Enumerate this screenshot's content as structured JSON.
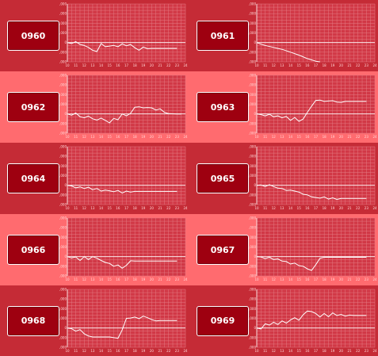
{
  "colors": {
    "row_dark": "#c52b36",
    "row_light": "#ff6b6f",
    "badge_fill": "#9e0010",
    "plot_bg": "#d13846",
    "grid": "#e47a82",
    "line": "#ffffff"
  },
  "y_ticks": [
    "12,000",
    "9,000",
    "6,000",
    "3,000",
    "0",
    "-3,000",
    "-6,000"
  ],
  "x_ticks": [
    "10",
    "11",
    "12",
    "13",
    "14",
    "15",
    "16",
    "17",
    "18",
    "19",
    "20",
    "21",
    "22",
    "23",
    "24"
  ],
  "chart_data": [
    {
      "id": "0960",
      "type": "line",
      "xlim": [
        10,
        24
      ],
      "ylim": [
        -6000,
        12000
      ],
      "x": [
        10,
        10.5,
        11,
        11.5,
        12,
        12.5,
        13,
        13.5,
        14,
        14.5,
        15,
        15.5,
        16,
        16.5,
        17,
        17.5,
        18,
        18.5,
        19,
        19.5,
        20,
        21,
        22,
        23
      ],
      "y": [
        0,
        -300,
        300,
        -600,
        -900,
        -1500,
        -2400,
        -2800,
        -300,
        -1300,
        -1100,
        -900,
        -1300,
        -400,
        -1000,
        -600,
        -1600,
        -2400,
        -1400,
        -1900,
        -1800,
        -1800,
        -1800,
        -1800
      ]
    },
    {
      "id": "0961",
      "type": "line",
      "xlim": [
        10,
        24
      ],
      "ylim": [
        -6000,
        12000
      ],
      "x": [
        10,
        10.5,
        11,
        12,
        13,
        14,
        15,
        16,
        17,
        17.5
      ],
      "y": [
        0,
        -500,
        -900,
        -1500,
        -2100,
        -3000,
        -3900,
        -5000,
        -5800,
        -6000
      ]
    },
    {
      "id": "0962",
      "type": "line",
      "xlim": [
        10,
        24
      ],
      "ylim": [
        -6000,
        12000
      ],
      "x": [
        10,
        10.5,
        11,
        11.5,
        12,
        12.5,
        13,
        13.5,
        14,
        14.5,
        15,
        15.5,
        16,
        16.5,
        17,
        17.5,
        18,
        18.5,
        19,
        19.5,
        20,
        20.5,
        21,
        21.5,
        22,
        23,
        23.5
      ],
      "y": [
        0,
        -400,
        300,
        -900,
        -1200,
        -700,
        -1500,
        -1900,
        -1300,
        -2000,
        -2800,
        -1400,
        -1800,
        0,
        -600,
        200,
        2100,
        2200,
        1900,
        2000,
        1900,
        1200,
        1600,
        500,
        100,
        0,
        0
      ]
    },
    {
      "id": "0963",
      "type": "line",
      "xlim": [
        10,
        24
      ],
      "ylim": [
        -6000,
        12000
      ],
      "x": [
        10,
        10.5,
        11,
        11.5,
        12,
        12.5,
        13,
        13.5,
        14,
        14.5,
        15,
        15.5,
        16,
        16.5,
        17,
        17.5,
        18,
        18.5,
        19,
        19.5,
        20,
        20.5,
        21,
        22,
        23
      ],
      "y": [
        0,
        -200,
        -600,
        -100,
        -900,
        -600,
        -1200,
        -800,
        -2000,
        -1100,
        -2300,
        -1600,
        500,
        2400,
        4200,
        4300,
        3900,
        4000,
        4100,
        3700,
        3600,
        3900,
        3900,
        3900,
        3900
      ]
    },
    {
      "id": "0964",
      "type": "line",
      "xlim": [
        10,
        24
      ],
      "ylim": [
        -6000,
        12000
      ],
      "x": [
        10,
        10.5,
        11,
        11.5,
        12,
        12.5,
        13,
        13.5,
        14,
        14.5,
        15,
        15.5,
        16,
        16.5,
        17,
        17.5,
        18,
        19,
        20,
        21,
        22,
        23
      ],
      "y": [
        0,
        -200,
        -800,
        -500,
        -1000,
        -600,
        -1400,
        -1000,
        -1800,
        -1500,
        -1700,
        -2000,
        -1600,
        -2400,
        -1800,
        -2100,
        -1900,
        -1900,
        -1900,
        -1900,
        -1900,
        -1900
      ]
    },
    {
      "id": "0965",
      "type": "line",
      "xlim": [
        10,
        24
      ],
      "ylim": [
        -6000,
        12000
      ],
      "x": [
        10,
        10.5,
        11,
        11.5,
        12,
        12.5,
        13,
        13.5,
        14,
        14.5,
        15,
        15.5,
        16,
        16.5,
        17,
        17.5,
        18,
        18.5,
        19,
        19.5,
        20,
        21,
        22,
        23
      ],
      "y": [
        0,
        100,
        -400,
        200,
        -400,
        -900,
        -1000,
        -1600,
        -1500,
        -1800,
        -2100,
        -2800,
        -3000,
        -3600,
        -3800,
        -4000,
        -3600,
        -4300,
        -3900,
        -4400,
        -4100,
        -4100,
        -4100,
        -4100
      ]
    },
    {
      "id": "0966",
      "type": "line",
      "xlim": [
        10,
        24
      ],
      "ylim": [
        -6000,
        12000
      ],
      "x": [
        10,
        10.5,
        11,
        11.5,
        12,
        12.5,
        13,
        13.5,
        14,
        14.5,
        15,
        15.5,
        16,
        16.5,
        17,
        17.5,
        18,
        19,
        20,
        21,
        22,
        23
      ],
      "y": [
        0,
        -400,
        -100,
        -1200,
        0,
        -900,
        0,
        -500,
        -1200,
        -1800,
        -2100,
        -3000,
        -2600,
        -3600,
        -2700,
        -1300,
        -1400,
        -1400,
        -1400,
        -1400,
        -1400,
        -1400
      ]
    },
    {
      "id": "0967",
      "type": "line",
      "xlim": [
        10,
        24
      ],
      "ylim": [
        -6000,
        12000
      ],
      "x": [
        10,
        10.5,
        11,
        11.5,
        12,
        12.5,
        13,
        13.5,
        14,
        14.5,
        15,
        15.5,
        16,
        16.5,
        17,
        17.5,
        18,
        19,
        20,
        21,
        22,
        23
      ],
      "y": [
        0,
        -100,
        -600,
        -200,
        -900,
        -700,
        -1400,
        -1500,
        -2300,
        -2000,
        -2800,
        -3000,
        -3800,
        -4300,
        -2500,
        -500,
        -200,
        -200,
        -200,
        -200,
        -200,
        -200
      ]
    },
    {
      "id": "0968",
      "type": "line",
      "xlim": [
        10,
        24
      ],
      "ylim": [
        -6000,
        12000
      ],
      "x": [
        10,
        10.5,
        11,
        11.5,
        12,
        12.5,
        13,
        14,
        15,
        16,
        16.5,
        17,
        17.5,
        18,
        18.5,
        19,
        19.5,
        20,
        20.5,
        21,
        21.5,
        22,
        23
      ],
      "y": [
        0,
        -200,
        -1000,
        -500,
        -1800,
        -2500,
        -2800,
        -2800,
        -2800,
        -3200,
        -600,
        3000,
        3100,
        3400,
        2900,
        3700,
        3200,
        2600,
        2200,
        2300,
        2300,
        2300,
        2300
      ]
    },
    {
      "id": "0969",
      "type": "line",
      "xlim": [
        10,
        24
      ],
      "ylim": [
        -6000,
        12000
      ],
      "x": [
        10,
        10.5,
        11,
        11.5,
        12,
        12.5,
        13,
        13.5,
        14,
        14.5,
        15,
        15.5,
        16,
        16.5,
        17,
        17.5,
        18,
        18.5,
        19,
        19.5,
        20,
        20.5,
        21,
        21.5,
        22,
        23
      ],
      "y": [
        0,
        -300,
        1300,
        900,
        1800,
        1100,
        2200,
        1500,
        2500,
        3200,
        2400,
        4100,
        5300,
        5100,
        4500,
        3400,
        4500,
        3500,
        4700,
        3900,
        4200,
        3700,
        4000,
        3900,
        3900,
        3900
      ]
    }
  ]
}
